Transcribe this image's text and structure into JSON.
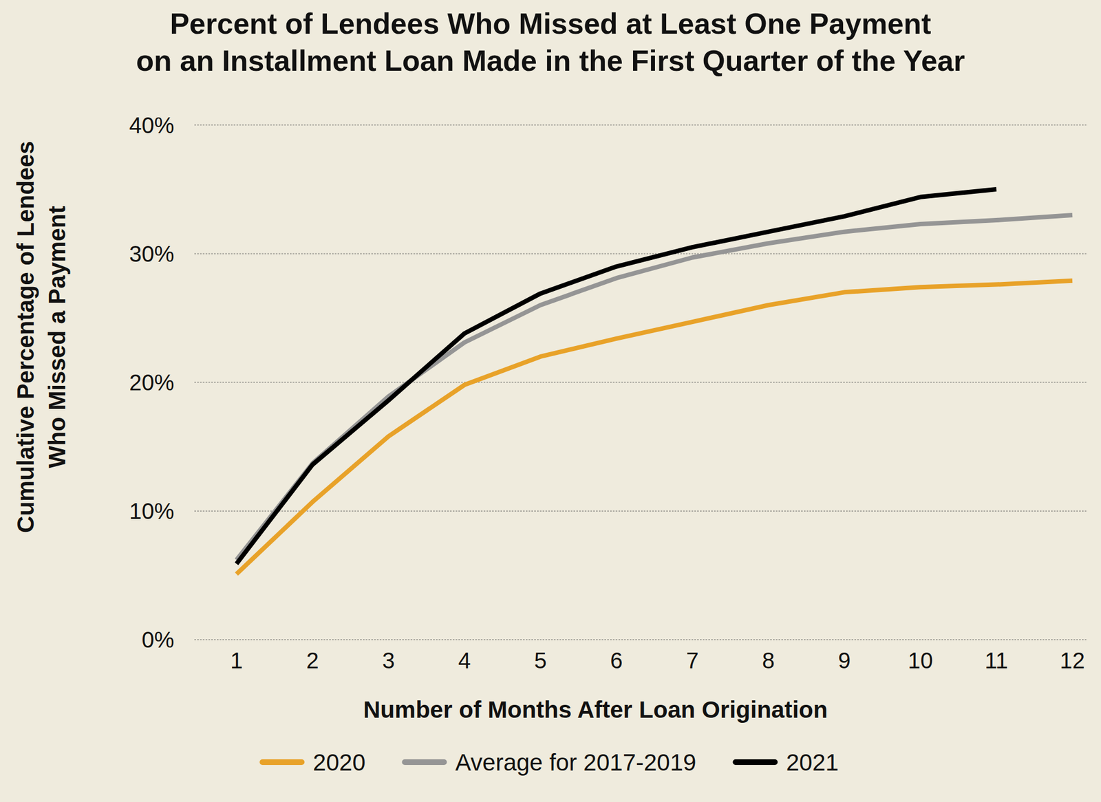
{
  "chart_data": {
    "type": "line",
    "title": "Percent of Lendees Who Missed at Least One Payment\non an Installment Loan Made in the First Quarter of the Year",
    "x_label": "Number of Months After Loan Origination",
    "y_label": "Cumulative Percentage of Lendees\nWho Missed a Payment",
    "categories": [
      "1",
      "2",
      "3",
      "4",
      "5",
      "6",
      "7",
      "8",
      "9",
      "10",
      "11",
      "12"
    ],
    "series": [
      {
        "name": "2020",
        "color": "#e8a229",
        "values": [
          5.1,
          10.7,
          15.8,
          19.8,
          22.0,
          23.4,
          24.7,
          26.0,
          27.0,
          27.4,
          27.6,
          27.9
        ]
      },
      {
        "name": "Average for 2017-2019",
        "color": "#959595",
        "values": [
          6.2,
          13.7,
          18.9,
          23.1,
          26.0,
          28.1,
          29.7,
          30.8,
          31.7,
          32.3,
          32.6,
          33.0
        ]
      },
      {
        "name": "2021",
        "color": "#000000",
        "values": [
          5.9,
          13.6,
          18.6,
          23.8,
          26.9,
          29.0,
          30.5,
          31.7,
          32.9,
          34.4,
          35.0,
          null
        ]
      }
    ],
    "ylim": [
      0,
      40
    ],
    "yticks": [
      {
        "value": 0,
        "label": "0%"
      },
      {
        "value": 10,
        "label": "10%"
      },
      {
        "value": 20,
        "label": "20%"
      },
      {
        "value": 30,
        "label": "30%"
      },
      {
        "value": 40,
        "label": "40%"
      }
    ],
    "grid": true,
    "legend": "bottom"
  }
}
